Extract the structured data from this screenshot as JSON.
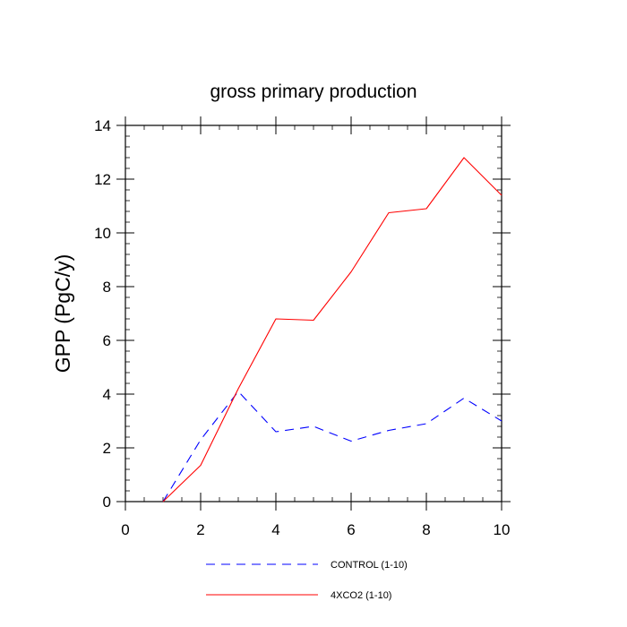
{
  "chart_data": {
    "type": "line",
    "title": "gross primary production",
    "xlabel": "",
    "ylabel": "GPP  (PgC/y)",
    "xlim": [
      0,
      10
    ],
    "ylim": [
      0,
      14
    ],
    "xticks": [
      0,
      2,
      4,
      6,
      8,
      10
    ],
    "yticks": [
      0,
      2,
      4,
      6,
      8,
      10,
      12,
      14
    ],
    "series": [
      {
        "name": "CONTROL (1-10)",
        "color": "#0000ff",
        "style": "dashed",
        "x": [
          1,
          2,
          3,
          4,
          5,
          6,
          7,
          8,
          9,
          10
        ],
        "values": [
          0.0,
          2.3,
          4.1,
          2.6,
          2.8,
          2.25,
          2.65,
          2.9,
          3.85,
          3.0
        ]
      },
      {
        "name": "4XCO2 (1-10)",
        "color": "#ff0000",
        "style": "solid",
        "x": [
          1,
          2,
          3,
          4,
          5,
          6,
          7,
          8,
          9,
          10
        ],
        "values": [
          0.0,
          1.35,
          4.2,
          6.8,
          6.75,
          8.55,
          10.75,
          10.9,
          12.8,
          11.4
        ]
      }
    ],
    "legend_position": "bottom"
  }
}
